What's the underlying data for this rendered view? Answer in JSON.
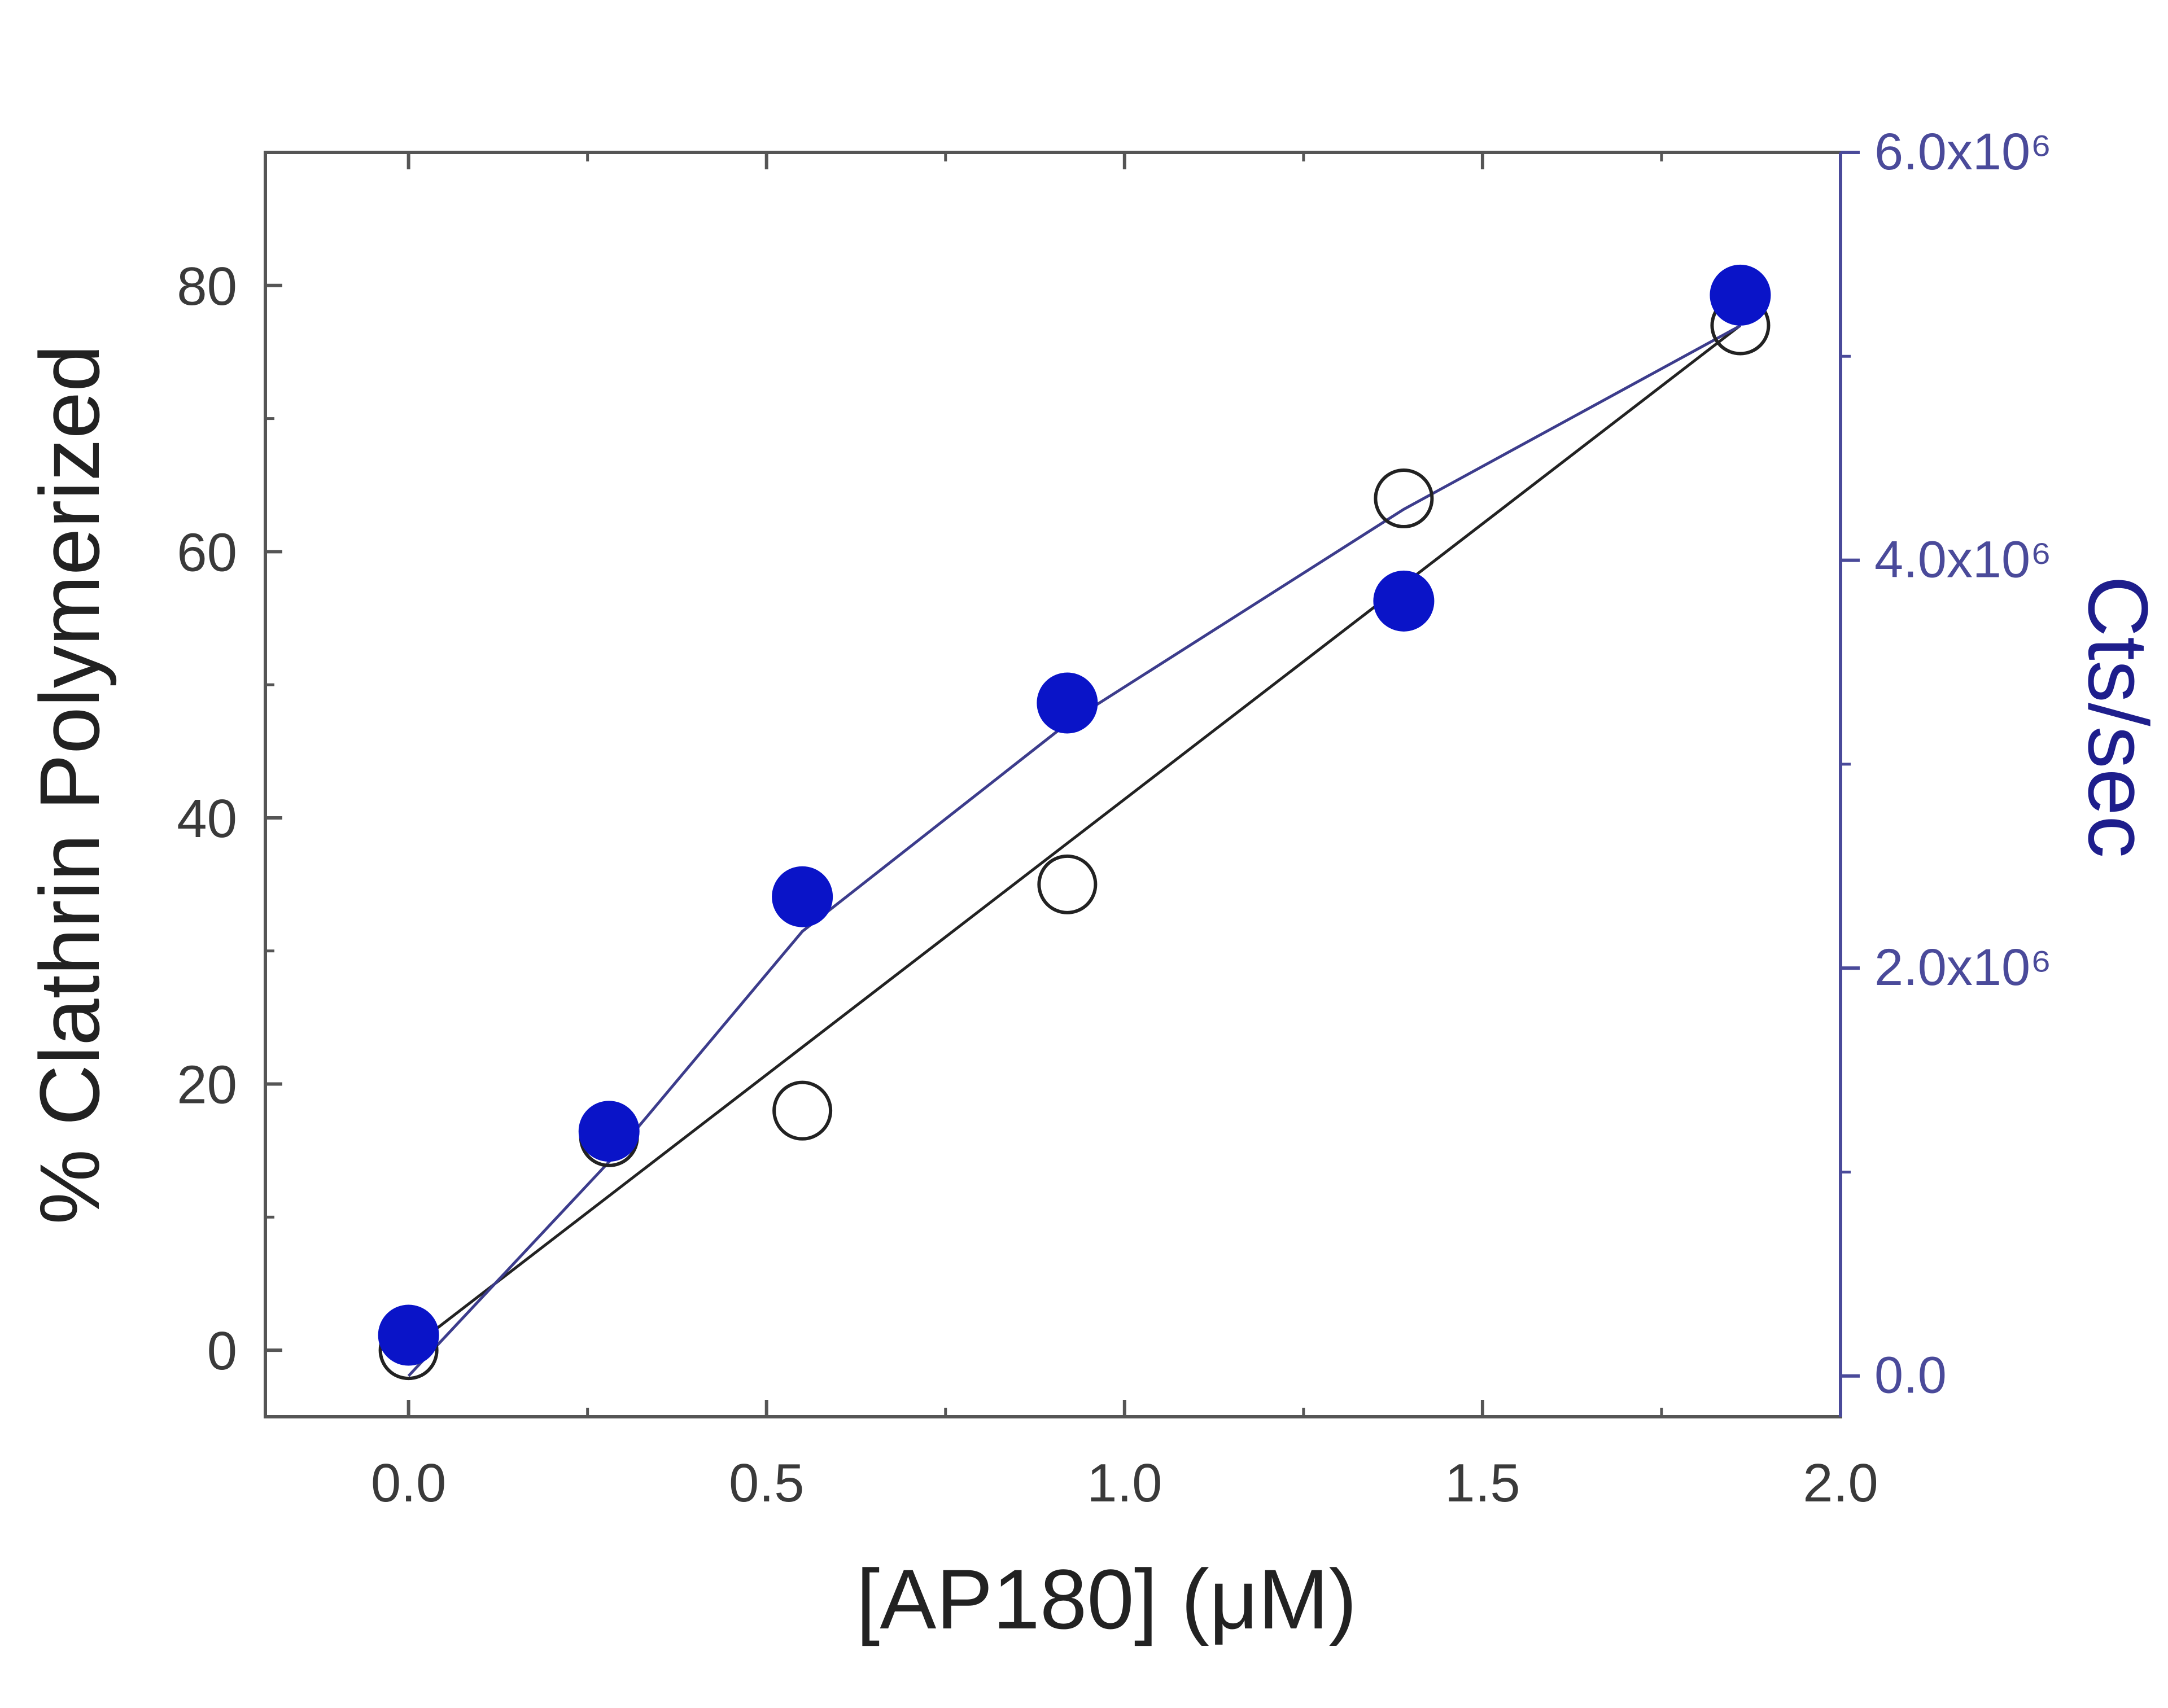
{
  "chart_data": {
    "type": "scatter",
    "title": "",
    "xlabel": "[AP180] (μM)",
    "ylabel": "% Clathrin Polymerized",
    "y2label": "Cts/sec",
    "xlim": [
      -0.2,
      2.0
    ],
    "ylim": [
      -5,
      90
    ],
    "y2lim": [
      -200000.0,
      6000000.0
    ],
    "x_ticks": [
      0.0,
      0.5,
      1.0,
      1.5,
      2.0
    ],
    "x_tick_labels": [
      "0.0",
      "0.5",
      "1.0",
      "1.5",
      "2.0"
    ],
    "y_ticks": [
      0,
      20,
      40,
      60,
      80
    ],
    "y_tick_labels": [
      "0",
      "20",
      "40",
      "60",
      "80"
    ],
    "y2_ticks": [
      0.0,
      2000000.0,
      4000000.0,
      6000000.0
    ],
    "y2_tick_labels": [
      "0.0",
      "2.0x10⁶",
      "4.0x10⁶",
      "6.0x10⁶"
    ],
    "grid": false,
    "legend": "none",
    "series": [
      {
        "axis": "left",
        "marker": "open-circle",
        "color": "#222222",
        "x": [
          0.0,
          0.28,
          0.55,
          0.92,
          1.39,
          1.86
        ],
        "y": [
          0,
          16,
          18,
          35,
          64,
          77
        ],
        "fit_line": {
          "x": [
            0.0,
            1.86
          ],
          "y": [
            0,
            77
          ]
        }
      },
      {
        "axis": "right",
        "marker": "filled-circle",
        "color": "#0a14c8",
        "line_color": "#3c3c8c",
        "x": [
          0.0,
          0.28,
          0.55,
          0.92,
          1.39,
          1.86
        ],
        "y": [
          200000.0,
          1200000.0,
          2350000.0,
          3300000.0,
          3800000.0,
          5300000.0
        ],
        "fit_line": {
          "x": [
            0.0,
            0.28,
            0.55,
            0.92,
            1.39,
            1.86
          ],
          "y": [
            0.0,
            1050000.0,
            2180000.0,
            3200000.0,
            4250000.0,
            5150000.0
          ]
        }
      }
    ]
  }
}
